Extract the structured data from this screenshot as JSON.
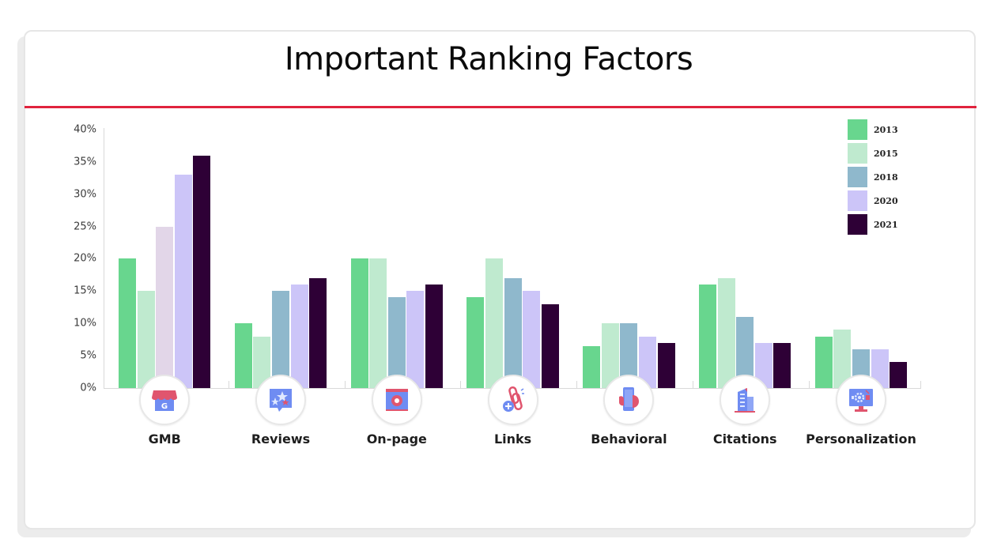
{
  "header": {
    "title": "Important Ranking Factors"
  },
  "colors": {
    "accent_divider": "#e0233d",
    "series": {
      "2013": "#68d68e",
      "2015": "#bfeacf",
      "2018": "#8fb8cc",
      "2020": "#ccc5f8",
      "2021": "#2e0036"
    },
    "gmb_2018_override": "#e2d6e8"
  },
  "legend": [
    {
      "label": "2013",
      "color": "#68d68e"
    },
    {
      "label": "2015",
      "color": "#bfeacf"
    },
    {
      "label": "2018",
      "color": "#8fb8cc"
    },
    {
      "label": "2020",
      "color": "#ccc5f8"
    },
    {
      "label": "2021",
      "color": "#2e0036"
    }
  ],
  "y_axis": {
    "ticks": [
      "40%",
      "35%",
      "30%",
      "25%",
      "20%",
      "15%",
      "10%",
      "5%",
      "0%"
    ]
  },
  "categories": [
    {
      "label": "GMB",
      "icon": "storefront-g-icon"
    },
    {
      "label": "Reviews",
      "icon": "star-review-bubble-icon"
    },
    {
      "label": "On-page",
      "icon": "webpage-target-icon"
    },
    {
      "label": "Links",
      "icon": "chain-link-plus-icon"
    },
    {
      "label": "Behavioral",
      "icon": "hand-phone-icon"
    },
    {
      "label": "Citations",
      "icon": "office-building-icon"
    },
    {
      "label": "Personalization",
      "icon": "monitor-gear-icon"
    }
  ],
  "chart_data": {
    "type": "bar",
    "title": "Important Ranking Factors",
    "xlabel": "",
    "ylabel": "",
    "ylim": [
      0,
      40
    ],
    "y_ticks": [
      0,
      5,
      10,
      15,
      20,
      25,
      30,
      35,
      40
    ],
    "y_tick_format": "percent",
    "grid": false,
    "legend_position": "top-right",
    "categories": [
      "GMB",
      "Reviews",
      "On-page",
      "Links",
      "Behavioral",
      "Citations",
      "Personalization"
    ],
    "series": [
      {
        "name": "2013",
        "values": [
          20,
          10,
          20,
          14,
          6.5,
          16,
          8
        ]
      },
      {
        "name": "2015",
        "values": [
          15,
          8,
          20,
          20,
          10,
          17,
          9
        ]
      },
      {
        "name": "2018",
        "values": [
          25,
          15,
          14,
          17,
          10,
          11,
          6
        ]
      },
      {
        "name": "2020",
        "values": [
          33,
          16,
          15,
          15,
          8,
          7,
          6
        ]
      },
      {
        "name": "2021",
        "values": [
          36,
          17,
          16,
          13,
          7,
          7,
          4
        ]
      }
    ]
  }
}
